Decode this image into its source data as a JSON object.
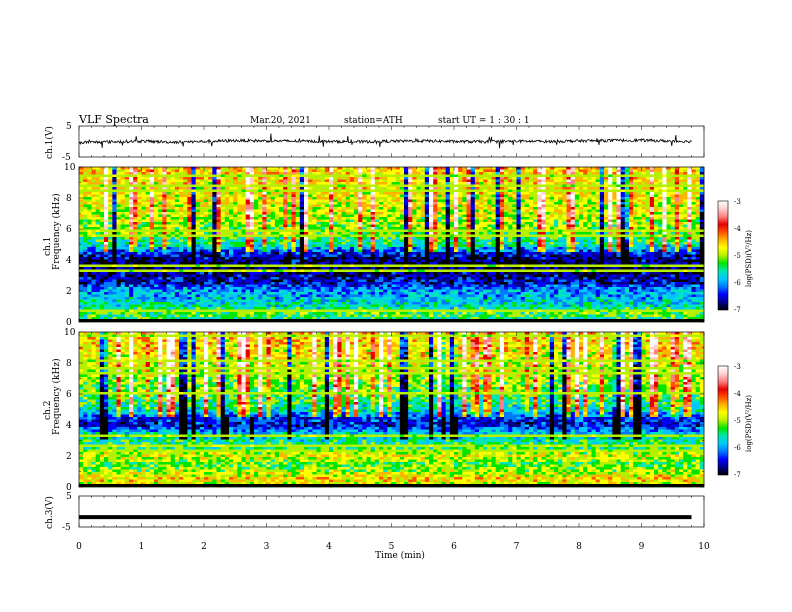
{
  "header": {
    "title": "VLF  Spectra",
    "date": "Mar.20, 2021",
    "station": "station=ATH",
    "start": "start  UT  =   1  : 30 : 1"
  },
  "panels": {
    "ch1v": {
      "ylabel": "ch.1(V)",
      "ticks": [
        "5",
        "-5"
      ]
    },
    "ch1": {
      "ylabel_top": "ch.1",
      "ylabel_bottom": "Frequency  (kHz)",
      "ticks": [
        "10",
        "8",
        "6",
        "4",
        "2",
        "0"
      ]
    },
    "ch2": {
      "ylabel_top": "ch.2",
      "ylabel_bottom": "Frequency  (kHz)",
      "ticks": [
        "10",
        "8",
        "6",
        "4",
        "2",
        "0"
      ]
    },
    "ch3v": {
      "ylabel": "ch.3(V)",
      "ticks": [
        "5",
        "-5"
      ]
    }
  },
  "xaxis": {
    "label": "Time  (min)",
    "ticks": [
      "0",
      "1",
      "2",
      "3",
      "4",
      "5",
      "6",
      "7",
      "8",
      "9",
      "10"
    ]
  },
  "colorbar": {
    "label": "log(PSD)(V²/Hz)",
    "ticks": [
      "-3",
      "-4",
      "-5",
      "-6",
      "-7"
    ],
    "colors": [
      "#000000",
      "#00008b",
      "#0000ff",
      "#0078ff",
      "#00c8ff",
      "#00e6b4",
      "#00e600",
      "#b4f000",
      "#ffff00",
      "#ffb400",
      "#ff5000",
      "#e60000",
      "#ff8080",
      "#ffd0d0",
      "#ffffff"
    ]
  },
  "chart_data": [
    {
      "type": "line",
      "panel": "ch.1(V)",
      "xlabel": "Time  (min)",
      "ylabel": "ch.1(V)",
      "xlim": [
        0,
        10
      ],
      "ylim": [
        -5,
        5
      ],
      "series": [
        {
          "x": [
            0,
            0.5,
            1,
            1.5,
            2,
            2.5,
            3,
            3.5,
            4,
            4.5,
            5,
            5.5,
            6,
            6.5,
            7,
            7.5,
            8,
            8.5,
            9,
            9.5,
            9.8
          ],
          "values": [
            -0.3,
            -0.1,
            0.1,
            -0.2,
            0.0,
            0.3,
            0.2,
            0.1,
            0.0,
            -0.1,
            0.1,
            0.2,
            0.0,
            -0.1,
            0.1,
            0.0,
            0.2,
            0.3,
            0.4,
            0.1,
            0.0
          ]
        }
      ]
    },
    {
      "type": "heatmap",
      "panel": "ch.1",
      "xlabel": "Time  (min)",
      "ylabel": "Frequency  (kHz)",
      "xlim": [
        0,
        10
      ],
      "ylim": [
        0,
        10
      ],
      "z_label": "log(PSD)(V²/Hz)",
      "zlim": [
        -7,
        -3
      ],
      "frequency_profile": {
        "kHz": [
          0,
          0.5,
          1,
          1.5,
          2,
          2.5,
          3,
          3.5,
          4,
          4.5,
          5,
          6,
          7,
          8,
          9,
          10
        ],
        "log_psd": [
          -5.6,
          -5.2,
          -5.6,
          -5.8,
          -5.9,
          -6.4,
          -6.6,
          -6.7,
          -6.6,
          -6.3,
          -5.5,
          -5.1,
          -4.9,
          -4.8,
          -4.7,
          -4.6
        ]
      }
    },
    {
      "type": "heatmap",
      "panel": "ch.2",
      "xlabel": "Time  (min)",
      "ylabel": "Frequency  (kHz)",
      "xlim": [
        0,
        10
      ],
      "ylim": [
        0,
        10
      ],
      "z_label": "log(PSD)(V²/Hz)",
      "zlim": [
        -7,
        -3
      ],
      "frequency_profile": {
        "kHz": [
          0,
          0.5,
          1,
          1.5,
          2,
          2.5,
          3,
          3.5,
          4,
          4.5,
          5,
          6,
          7,
          8,
          9,
          10
        ],
        "log_psd": [
          -5.1,
          -4.6,
          -5.0,
          -5.2,
          -4.8,
          -5.3,
          -5.5,
          -5.8,
          -6.4,
          -6.2,
          -5.6,
          -5.2,
          -5.0,
          -4.8,
          -4.7,
          -4.6
        ]
      }
    },
    {
      "type": "line",
      "panel": "ch.3(V)",
      "xlabel": "Time  (min)",
      "ylabel": "ch.3(V)",
      "xlim": [
        0,
        10
      ],
      "ylim": [
        -5,
        5
      ],
      "series": [
        {
          "x": [
            0,
            9.8
          ],
          "values": [
            -1.8,
            -1.8
          ]
        }
      ]
    }
  ]
}
